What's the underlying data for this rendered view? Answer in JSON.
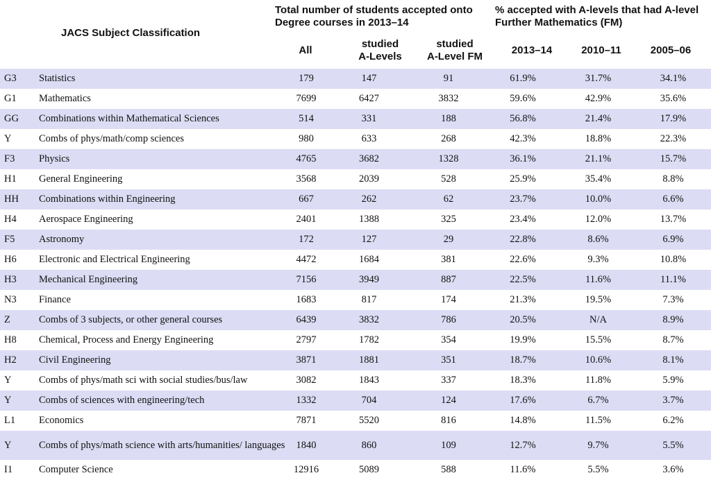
{
  "header": {
    "classification": "JACS Subject Classification",
    "total_group_line1": "Total number of students accepted onto",
    "total_group_line2": "Degree courses in 2013–14",
    "pct_group_line1": "% accepted with A-levels that had A-level",
    "pct_group_line2": "Further Mathematics (FM)",
    "col_all": "All",
    "col_alevels_line1": "studied",
    "col_alevels_line2": "A-Levels",
    "col_fm_line1": "studied",
    "col_fm_line2": "A-Level FM",
    "col_2013": "2013–14",
    "col_2010": "2010–11",
    "col_2005": "2005–06"
  },
  "rows": [
    {
      "code": "G3",
      "subject": "Statistics",
      "all": "179",
      "alevels": "147",
      "fm": "91",
      "p2013": "61.9%",
      "p2010": "31.7%",
      "p2005": "34.1%"
    },
    {
      "code": "G1",
      "subject": "Mathematics",
      "all": "7699",
      "alevels": "6427",
      "fm": "3832",
      "p2013": "59.6%",
      "p2010": "42.9%",
      "p2005": "35.6%"
    },
    {
      "code": "GG",
      "subject": "Combinations within Mathematical Sciences",
      "all": "514",
      "alevels": "331",
      "fm": "188",
      "p2013": "56.8%",
      "p2010": "21.4%",
      "p2005": "17.9%"
    },
    {
      "code": "Y",
      "subject": "Combs of phys/math/comp sciences",
      "all": "980",
      "alevels": "633",
      "fm": "268",
      "p2013": "42.3%",
      "p2010": "18.8%",
      "p2005": "22.3%"
    },
    {
      "code": "F3",
      "subject": "Physics",
      "all": "4765",
      "alevels": "3682",
      "fm": "1328",
      "p2013": "36.1%",
      "p2010": "21.1%",
      "p2005": "15.7%"
    },
    {
      "code": "H1",
      "subject": "General Engineering",
      "all": "3568",
      "alevels": "2039",
      "fm": "528",
      "p2013": "25.9%",
      "p2010": "35.4%",
      "p2005": "8.8%"
    },
    {
      "code": "HH",
      "subject": "Combinations within Engineering",
      "all": "667",
      "alevels": "262",
      "fm": "62",
      "p2013": "23.7%",
      "p2010": "10.0%",
      "p2005": "6.6%"
    },
    {
      "code": "H4",
      "subject": "Aerospace Engineering",
      "all": "2401",
      "alevels": "1388",
      "fm": "325",
      "p2013": "23.4%",
      "p2010": "12.0%",
      "p2005": "13.7%"
    },
    {
      "code": "F5",
      "subject": "Astronomy",
      "all": "172",
      "alevels": "127",
      "fm": "29",
      "p2013": "22.8%",
      "p2010": "8.6%",
      "p2005": "6.9%"
    },
    {
      "code": "H6",
      "subject": "Electronic and Electrical Engineering",
      "all": "4472",
      "alevels": "1684",
      "fm": "381",
      "p2013": "22.6%",
      "p2010": "9.3%",
      "p2005": "10.8%"
    },
    {
      "code": "H3",
      "subject": "Mechanical Engineering",
      "all": "7156",
      "alevels": "3949",
      "fm": "887",
      "p2013": "22.5%",
      "p2010": "11.6%",
      "p2005": "11.1%"
    },
    {
      "code": "N3",
      "subject": "Finance",
      "all": "1683",
      "alevels": "817",
      "fm": "174",
      "p2013": "21.3%",
      "p2010": "19.5%",
      "p2005": "7.3%"
    },
    {
      "code": "Z",
      "subject": "Combs of 3 subjects, or other general courses",
      "all": "6439",
      "alevels": "3832",
      "fm": "786",
      "p2013": "20.5%",
      "p2010": "N/A",
      "p2005": "8.9%"
    },
    {
      "code": "H8",
      "subject": "Chemical, Process and Energy Engineering",
      "all": "2797",
      "alevels": "1782",
      "fm": "354",
      "p2013": "19.9%",
      "p2010": "15.5%",
      "p2005": "8.7%"
    },
    {
      "code": "H2",
      "subject": "Civil Engineering",
      "all": "3871",
      "alevels": "1881",
      "fm": "351",
      "p2013": "18.7%",
      "p2010": "10.6%",
      "p2005": "8.1%"
    },
    {
      "code": "Y",
      "subject": "Combs of phys/math sci with social studies/bus/law",
      "all": "3082",
      "alevels": "1843",
      "fm": "337",
      "p2013": "18.3%",
      "p2010": "11.8%",
      "p2005": "5.9%"
    },
    {
      "code": "Y",
      "subject": "Combs of sciences with engineering/tech",
      "all": "1332",
      "alevels": "704",
      "fm": "124",
      "p2013": "17.6%",
      "p2010": "6.7%",
      "p2005": "3.7%"
    },
    {
      "code": "L1",
      "subject": "Economics",
      "all": "7871",
      "alevels": "5520",
      "fm": "816",
      "p2013": "14.8%",
      "p2010": "11.5%",
      "p2005": "6.2%"
    },
    {
      "code": "Y",
      "subject": "Combs of phys/math science with arts/humanities/ languages",
      "all": "1840",
      "alevels": "860",
      "fm": "109",
      "p2013": "12.7%",
      "p2010": "9.7%",
      "p2005": "5.5%"
    },
    {
      "code": "I1",
      "subject": "Computer Science",
      "all": "12916",
      "alevels": "5089",
      "fm": "588",
      "p2013": "11.6%",
      "p2010": "5.5%",
      "p2005": "3.6%"
    }
  ]
}
